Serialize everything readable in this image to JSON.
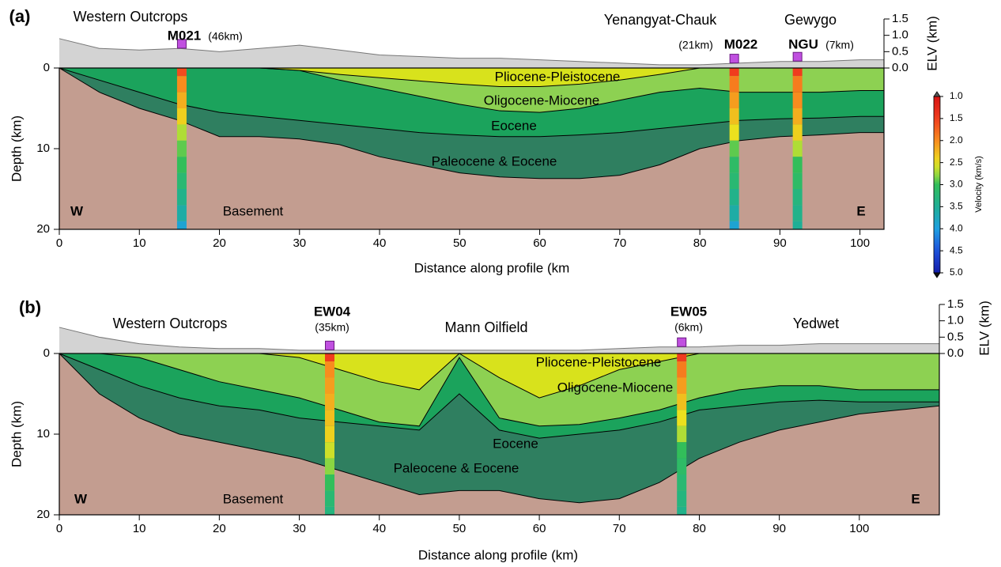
{
  "chart_data": [
    {
      "type": "cross-section",
      "panel_label": "(a)",
      "xlabel": "Distance along profile (km",
      "ylabel": "Depth (km)",
      "y2label": "ELV (km)",
      "xlim": [
        0,
        103
      ],
      "xticks": [
        0,
        10,
        20,
        30,
        40,
        50,
        60,
        70,
        80,
        90,
        100
      ],
      "ylim": [
        0,
        20
      ],
      "yticks": [
        0,
        10,
        20
      ],
      "y2lim": [
        0,
        1.5
      ],
      "y2ticks": [
        {
          "value": 0,
          "label": "0.0"
        },
        0.5,
        {
          "value": 1,
          "label": "1.0"
        },
        1.5
      ],
      "x": [
        0,
        5,
        10,
        15,
        20,
        25,
        30,
        35,
        40,
        45,
        50,
        55,
        60,
        65,
        70,
        75,
        80,
        85,
        90,
        95,
        100,
        103
      ],
      "topography": {
        "color": "#d3d3d3",
        "values": [
          0.9,
          0.6,
          0.55,
          0.6,
          0.5,
          0.6,
          0.7,
          0.55,
          0.4,
          0.35,
          0.3,
          0.3,
          0.25,
          0.2,
          0.15,
          0.1,
          0.1,
          0.15,
          0.2,
          0.2,
          0.25,
          0.25
        ]
      },
      "basement": {
        "name": "Basement",
        "color": "#c39d90"
      },
      "series": [
        {
          "name": "Paleocene & Eocene",
          "color": "#2f7f60",
          "values": [
            0,
            3,
            5,
            6.5,
            8.5,
            8.5,
            8.8,
            9.5,
            11,
            12,
            13,
            13.5,
            13.7,
            13.7,
            13.3,
            12,
            10,
            9,
            8.5,
            8.3,
            8,
            8
          ]
        },
        {
          "name": "Eocene",
          "color": "#1ba35c",
          "values": [
            0,
            1.5,
            3,
            4.5,
            5.5,
            6,
            6.5,
            7,
            7.5,
            8,
            8.3,
            8.5,
            8.5,
            8.3,
            8,
            7.5,
            7,
            6.5,
            6.3,
            6.2,
            6,
            6
          ]
        },
        {
          "name": "Oligocene-Miocene",
          "color": "#8dd152",
          "values": [
            0,
            0,
            0,
            0,
            0,
            0,
            0.3,
            1.5,
            2.5,
            3.5,
            4.5,
            5.3,
            5.5,
            5,
            4,
            3,
            2.5,
            3,
            3,
            3,
            2.8,
            2.8
          ]
        },
        {
          "name": "Pliocene-Pleistocene",
          "color": "#d8e21c",
          "values": [
            0,
            0,
            0,
            0,
            0,
            0,
            0.3,
            0.8,
            1.2,
            1.6,
            2,
            2.3,
            2.3,
            2,
            1.5,
            0.8,
            0,
            0,
            0,
            0,
            0,
            0
          ]
        }
      ],
      "annotations": [
        "Western Outcrops",
        "Yenangyat-Chauk",
        "Gewygo",
        "W",
        "E"
      ],
      "velocity_depths": [
        0,
        2,
        4,
        6,
        8,
        10,
        12,
        14,
        16,
        18,
        20
      ],
      "wells": [
        {
          "name": "M021",
          "distance": "(46km)",
          "x": 15.3,
          "velocities": [
            1.6,
            2.0,
            2.2,
            2.4,
            2.7,
            2.9,
            3.0,
            3.2,
            3.4,
            3.6,
            3.9
          ]
        },
        {
          "name": "M022",
          "distance": "(21km)",
          "x": 84.3,
          "velocities": [
            1.5,
            1.9,
            2.1,
            2.3,
            2.5,
            2.9,
            3.1,
            3.2,
            3.4,
            3.6,
            3.9
          ]
        },
        {
          "name": "NGU",
          "distance": "(7km)",
          "x": 92.2,
          "velocities": [
            1.5,
            1.9,
            2.0,
            2.2,
            2.4,
            2.7,
            3.0,
            3.1,
            3.3,
            3.4,
            3.5
          ]
        }
      ],
      "colorbar": {
        "label": "Velocity (km/s)",
        "clim": [
          1,
          5
        ],
        "ticks": [
          {
            "value": 1,
            "label": "1.0"
          },
          1.5,
          {
            "value": 2,
            "label": "2.0"
          },
          2.5,
          {
            "value": 3,
            "label": "3.0"
          },
          3.5,
          {
            "value": 4,
            "label": "4.0"
          },
          4.5,
          {
            "value": 5,
            "label": "5.0"
          }
        ]
      }
    },
    {
      "type": "cross-section",
      "panel_label": "(b)",
      "xlabel": "Distance along profile (km)",
      "ylabel": "Depth (km)",
      "y2label": "ELV (km)",
      "xlim": [
        0,
        110
      ],
      "xticks": [
        0,
        10,
        20,
        30,
        40,
        50,
        60,
        70,
        80,
        90,
        100
      ],
      "ylim": [
        0,
        20
      ],
      "yticks": [
        0,
        10,
        20
      ],
      "y2lim": [
        0,
        1.5
      ],
      "y2ticks": [
        {
          "value": 0,
          "label": "0.0"
        },
        0.5,
        {
          "value": 1,
          "label": "1.0"
        },
        1.5
      ],
      "x": [
        0,
        5,
        10,
        15,
        20,
        25,
        30,
        35,
        40,
        45,
        50,
        55,
        60,
        65,
        70,
        75,
        80,
        85,
        90,
        95,
        100,
        105,
        110
      ],
      "topography": {
        "color": "#d3d3d3",
        "values": [
          0.8,
          0.5,
          0.3,
          0.2,
          0.15,
          0.15,
          0.1,
          0.1,
          0.1,
          0.1,
          0.1,
          0.1,
          0.1,
          0.1,
          0.15,
          0.2,
          0.2,
          0.25,
          0.25,
          0.3,
          0.3,
          0.3,
          0.3
        ]
      },
      "basement": {
        "name": "Basement",
        "color": "#c39d90"
      },
      "series": [
        {
          "name": "Paleocene & Eocene",
          "color": "#2f7f60",
          "values": [
            0,
            5,
            8,
            10,
            11,
            12,
            13,
            14.5,
            16,
            17.5,
            17,
            17,
            18,
            18.5,
            18,
            16,
            13,
            11,
            9.5,
            8.5,
            7.5,
            7,
            6.5
          ]
        },
        {
          "name": "Eocene",
          "color": "#1ba35c",
          "values": [
            0,
            2,
            4,
            5.5,
            6.5,
            7,
            8,
            8.5,
            9,
            9.5,
            5,
            9.5,
            10.5,
            10,
            9.5,
            8.5,
            7,
            6.5,
            6,
            5.8,
            6,
            6,
            6
          ]
        },
        {
          "name": "Oligocene-Miocene",
          "color": "#8dd152",
          "values": [
            0,
            0,
            0.5,
            2,
            3.5,
            4.5,
            5.5,
            7,
            8.5,
            9,
            0.5,
            8,
            9,
            8.8,
            8,
            7,
            5.5,
            4.5,
            4,
            4,
            4.5,
            4.5,
            4.5
          ]
        },
        {
          "name": "Pliocene-Pleistocene",
          "color": "#d8e21c",
          "values": [
            0,
            0,
            0,
            0,
            0,
            0,
            0.5,
            2,
            3.5,
            4.5,
            0,
            3,
            5.5,
            4,
            2,
            1,
            0,
            0,
            0,
            0,
            0,
            0,
            0
          ]
        }
      ],
      "annotations": [
        "Western Outcrops",
        "Mann Oilfield",
        "Yedwet",
        "W",
        "E"
      ],
      "velocity_depths": [
        0,
        2,
        4,
        6,
        8,
        10,
        12,
        14,
        16,
        18,
        20
      ],
      "wells": [
        {
          "name": "EW04",
          "distance": "(35km)",
          "x": 33.8,
          "velocities": [
            1.5,
            2.0,
            2.1,
            2.2,
            2.3,
            2.4,
            2.6,
            2.8,
            3.0,
            3.2,
            3.3
          ]
        },
        {
          "name": "EW05",
          "distance": "(6km)",
          "x": 77.8,
          "velocities": [
            1.5,
            1.9,
            2.1,
            2.3,
            2.5,
            2.7,
            3.0,
            3.1,
            3.2,
            3.3,
            3.4
          ]
        }
      ]
    }
  ]
}
